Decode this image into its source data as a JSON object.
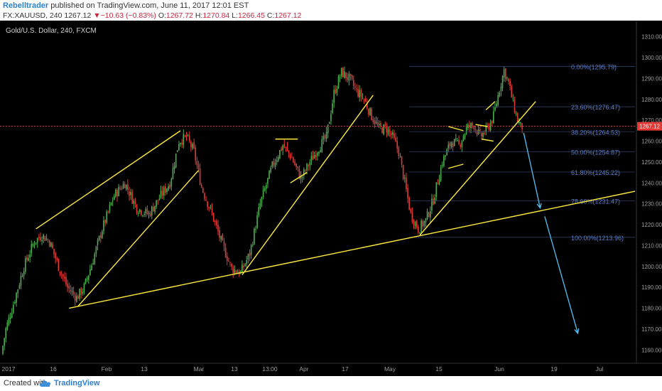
{
  "header": {
    "author": "Rebelltrader",
    "published": "published on TradingView.com, June 11, 2017 12:01 EST",
    "symbol": "FX:XAUUSD, 240",
    "last": "1267.12",
    "arrow": "▼",
    "change": "−10.63 (−0.83%)",
    "o_label": "O:",
    "o_value": "1267.72",
    "h_label": "H:",
    "h_value": "1270.84",
    "l_label": "L:",
    "l_value": "1266.45",
    "c_label": "C:",
    "c_value": "1267.12"
  },
  "footer": {
    "created_with": "Created with",
    "brand": "TradingView",
    "logo_icon": "tradingview-cloud-icon"
  },
  "colors": {
    "background": "#000000",
    "up": "#4caf50",
    "down": "#e53935",
    "trendline": "#ffeb3b",
    "fib": "#5b7fc7",
    "current_price_line": "#e53935",
    "projection_arrow": "#4fc3f7",
    "axis_text": "#9e9e9e"
  },
  "chart_data": {
    "type": "candlestick",
    "title": "Gold/U.S. Dollar, 240, FXCM",
    "ylim": [
      1155,
      1315
    ],
    "y_ticks": [
      1160,
      1170,
      1180,
      1190,
      1200,
      1210,
      1220,
      1230,
      1240,
      1250,
      1260,
      1270,
      1280,
      1290,
      1300,
      1310
    ],
    "x_ticks": [
      "2017",
      "16",
      "Feb",
      "13",
      "Mar",
      "13",
      "13:00",
      "Apr",
      "17",
      "May",
      "15",
      "Jun",
      "19",
      "Jul"
    ],
    "current_price": 1267.12,
    "current_price_label": "1267.12",
    "fib_retracement": {
      "levels": [
        {
          "ratio": "0.00%",
          "price": 1295.79,
          "label": "0.00%(1295.79)"
        },
        {
          "ratio": "23.60%",
          "price": 1276.47,
          "label": "23.60%(1276.47)"
        },
        {
          "ratio": "38.20%",
          "price": 1264.53,
          "label": "38.20%(1264.53)"
        },
        {
          "ratio": "50.00%",
          "price": 1254.87,
          "label": "50.00%(1254.87)"
        },
        {
          "ratio": "61.80%",
          "price": 1245.22,
          "label": "61.80%(1245.22)"
        },
        {
          "ratio": "78.60%",
          "price": 1231.47,
          "label": "78.60%(1231.47)"
        },
        {
          "ratio": "100.00%",
          "price": 1213.96,
          "label": "100.00%(1213.96)"
        }
      ]
    },
    "price_path": [
      [
        0,
        1158
      ],
      [
        3,
        1170
      ],
      [
        8,
        1182
      ],
      [
        15,
        1200
      ],
      [
        22,
        1212
      ],
      [
        27,
        1215
      ],
      [
        32,
        1212
      ],
      [
        38,
        1200
      ],
      [
        44,
        1190
      ],
      [
        50,
        1185
      ],
      [
        55,
        1190
      ],
      [
        60,
        1201
      ],
      [
        67,
        1218
      ],
      [
        75,
        1234
      ],
      [
        82,
        1240
      ],
      [
        90,
        1228
      ],
      [
        98,
        1225
      ],
      [
        106,
        1234
      ],
      [
        112,
        1240
      ],
      [
        118,
        1260
      ],
      [
        123,
        1262
      ],
      [
        128,
        1255
      ],
      [
        133,
        1238
      ],
      [
        140,
        1225
      ],
      [
        147,
        1210
      ],
      [
        153,
        1199
      ],
      [
        159,
        1197
      ],
      [
        165,
        1206
      ],
      [
        172,
        1230
      ],
      [
        180,
        1248
      ],
      [
        187,
        1258
      ],
      [
        193,
        1252
      ],
      [
        199,
        1242
      ],
      [
        205,
        1250
      ],
      [
        210,
        1256
      ],
      [
        216,
        1262
      ],
      [
        221,
        1283
      ],
      [
        226,
        1293
      ],
      [
        231,
        1290
      ],
      [
        236,
        1284
      ],
      [
        241,
        1280
      ],
      [
        246,
        1272
      ],
      [
        251,
        1266
      ],
      [
        256,
        1266
      ],
      [
        260,
        1262
      ],
      [
        264,
        1255
      ],
      [
        268,
        1240
      ],
      [
        272,
        1225
      ],
      [
        277,
        1218
      ],
      [
        282,
        1222
      ],
      [
        287,
        1232
      ],
      [
        293,
        1250
      ],
      [
        299,
        1260
      ],
      [
        304,
        1258
      ],
      [
        309,
        1266
      ],
      [
        314,
        1268
      ],
      [
        318,
        1262
      ],
      [
        323,
        1266
      ],
      [
        327,
        1272
      ],
      [
        331,
        1285
      ],
      [
        334,
        1294
      ],
      [
        337,
        1288
      ],
      [
        340,
        1278
      ],
      [
        343,
        1270
      ],
      [
        345,
        1267
      ]
    ],
    "trend_lines": [
      {
        "name": "main-support",
        "from": [
          44,
          1180
        ],
        "to": [
          420,
          1236
        ]
      },
      {
        "name": "channel-1-upper",
        "from": [
          22,
          1218
        ],
        "to": [
          118,
          1265
        ]
      },
      {
        "name": "channel-1-lower",
        "from": [
          50,
          1181
        ],
        "to": [
          130,
          1246
        ]
      },
      {
        "name": "channel-2-lower",
        "from": [
          159,
          1196
        ],
        "to": [
          246,
          1282
        ]
      },
      {
        "name": "channel-2-upper-short",
        "from": [
          181,
          1261
        ],
        "to": [
          196,
          1261
        ]
      },
      {
        "name": "flag-1-lower",
        "from": [
          191,
          1240
        ],
        "to": [
          202,
          1245
        ]
      },
      {
        "name": "channel-3-lower",
        "from": [
          277,
          1215
        ],
        "to": [
          354,
          1279
        ]
      },
      {
        "name": "triangle-top",
        "from": [
          296,
          1267
        ],
        "to": [
          306,
          1265
        ]
      },
      {
        "name": "triangle-bottom",
        "from": [
          296,
          1247
        ],
        "to": [
          306,
          1249
        ]
      },
      {
        "name": "flag-2-upper",
        "from": [
          314,
          1268
        ],
        "to": [
          322,
          1267
        ]
      },
      {
        "name": "flag-2-lower",
        "from": [
          318,
          1261
        ],
        "to": [
          326,
          1260
        ]
      },
      {
        "name": "small-up",
        "from": [
          321,
          1275
        ],
        "to": [
          327,
          1279
        ]
      }
    ],
    "projection_arrows": [
      {
        "from": [
          346,
          1264
        ],
        "to": [
          357,
          1228
        ]
      },
      {
        "from": [
          360,
          1224
        ],
        "to": [
          382,
          1168
        ]
      }
    ]
  }
}
